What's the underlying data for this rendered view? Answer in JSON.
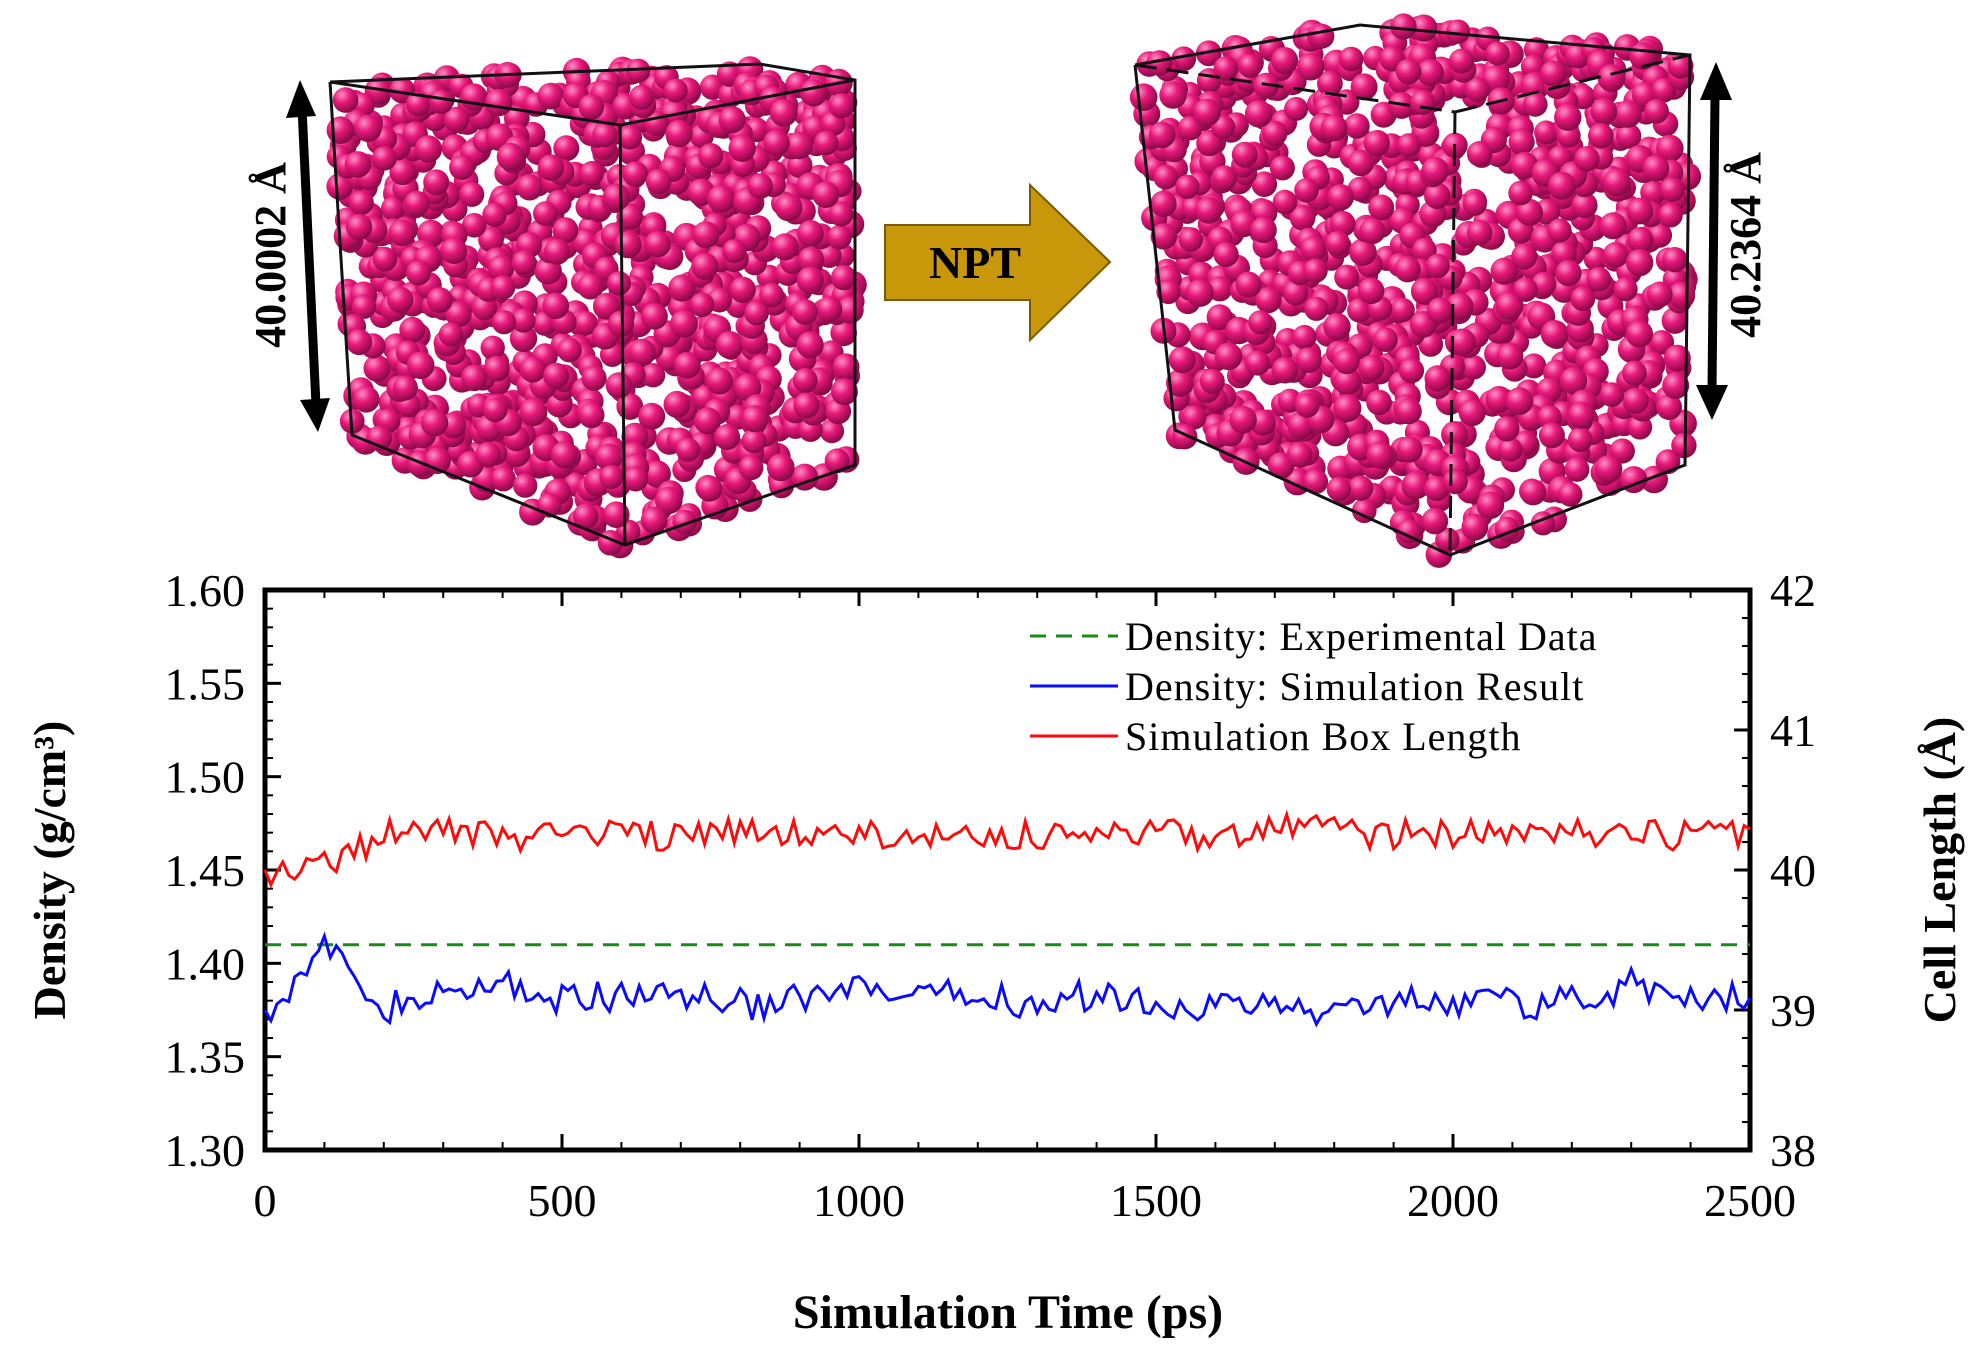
{
  "illustration": {
    "before_label": "40.0002 Å",
    "after_label": "40.2364 Å",
    "arrow_label": "NPT",
    "sphere_color": "#e8187a",
    "arrow_color": "#c8970a"
  },
  "chart_data": {
    "type": "line",
    "xlabel": "Simulation Time (ps)",
    "ylabel_left": "Density (g/cm³)",
    "ylabel_right": "Cell Length (Å)",
    "xlim": [
      0,
      2500
    ],
    "ylim_left": [
      1.3,
      1.6
    ],
    "ylim_right": [
      38,
      42
    ],
    "x_ticks": [
      "0",
      "500",
      "1000",
      "1500",
      "2000",
      "2500"
    ],
    "y_left_ticks": [
      "1.30",
      "1.35",
      "1.40",
      "1.45",
      "1.50",
      "1.55",
      "1.60"
    ],
    "y_right_ticks": [
      "38",
      "39",
      "40",
      "41",
      "42"
    ],
    "legend_position": "top-right",
    "series": [
      {
        "name": "Density: Experimental Data",
        "axis": "left",
        "style": "dashed",
        "color": "#1a8a1a",
        "x": [
          0,
          2500
        ],
        "y": [
          1.41,
          1.41
        ]
      },
      {
        "name": "Density: Simulation Result",
        "axis": "left",
        "style": "solid",
        "color": "#0a0aff",
        "x": [
          0,
          100,
          200,
          300,
          400,
          500,
          600,
          700,
          800,
          900,
          1000,
          1100,
          1200,
          1300,
          1400,
          1500,
          1600,
          1700,
          1800,
          1900,
          2000,
          2100,
          2200,
          2300,
          2400,
          2500
        ],
        "y": [
          1.375,
          1.408,
          1.376,
          1.382,
          1.39,
          1.38,
          1.382,
          1.385,
          1.378,
          1.38,
          1.385,
          1.38,
          1.384,
          1.378,
          1.383,
          1.38,
          1.376,
          1.378,
          1.372,
          1.382,
          1.38,
          1.378,
          1.38,
          1.388,
          1.383,
          1.38
        ]
      },
      {
        "name": "Simulation Box Length",
        "axis": "right",
        "style": "solid",
        "color": "#ff0a0a",
        "x": [
          0,
          100,
          200,
          300,
          400,
          500,
          600,
          700,
          800,
          900,
          1000,
          1100,
          1200,
          1300,
          1400,
          1500,
          1600,
          1700,
          1800,
          1900,
          2000,
          2100,
          2200,
          2300,
          2400,
          2500
        ],
        "y": [
          40.0,
          40.05,
          40.25,
          40.28,
          40.22,
          40.25,
          40.26,
          40.24,
          40.27,
          40.25,
          40.24,
          40.26,
          40.24,
          40.25,
          40.23,
          40.26,
          40.25,
          40.3,
          40.27,
          40.26,
          40.24,
          40.27,
          40.25,
          40.24,
          40.25,
          40.25
        ]
      }
    ]
  }
}
